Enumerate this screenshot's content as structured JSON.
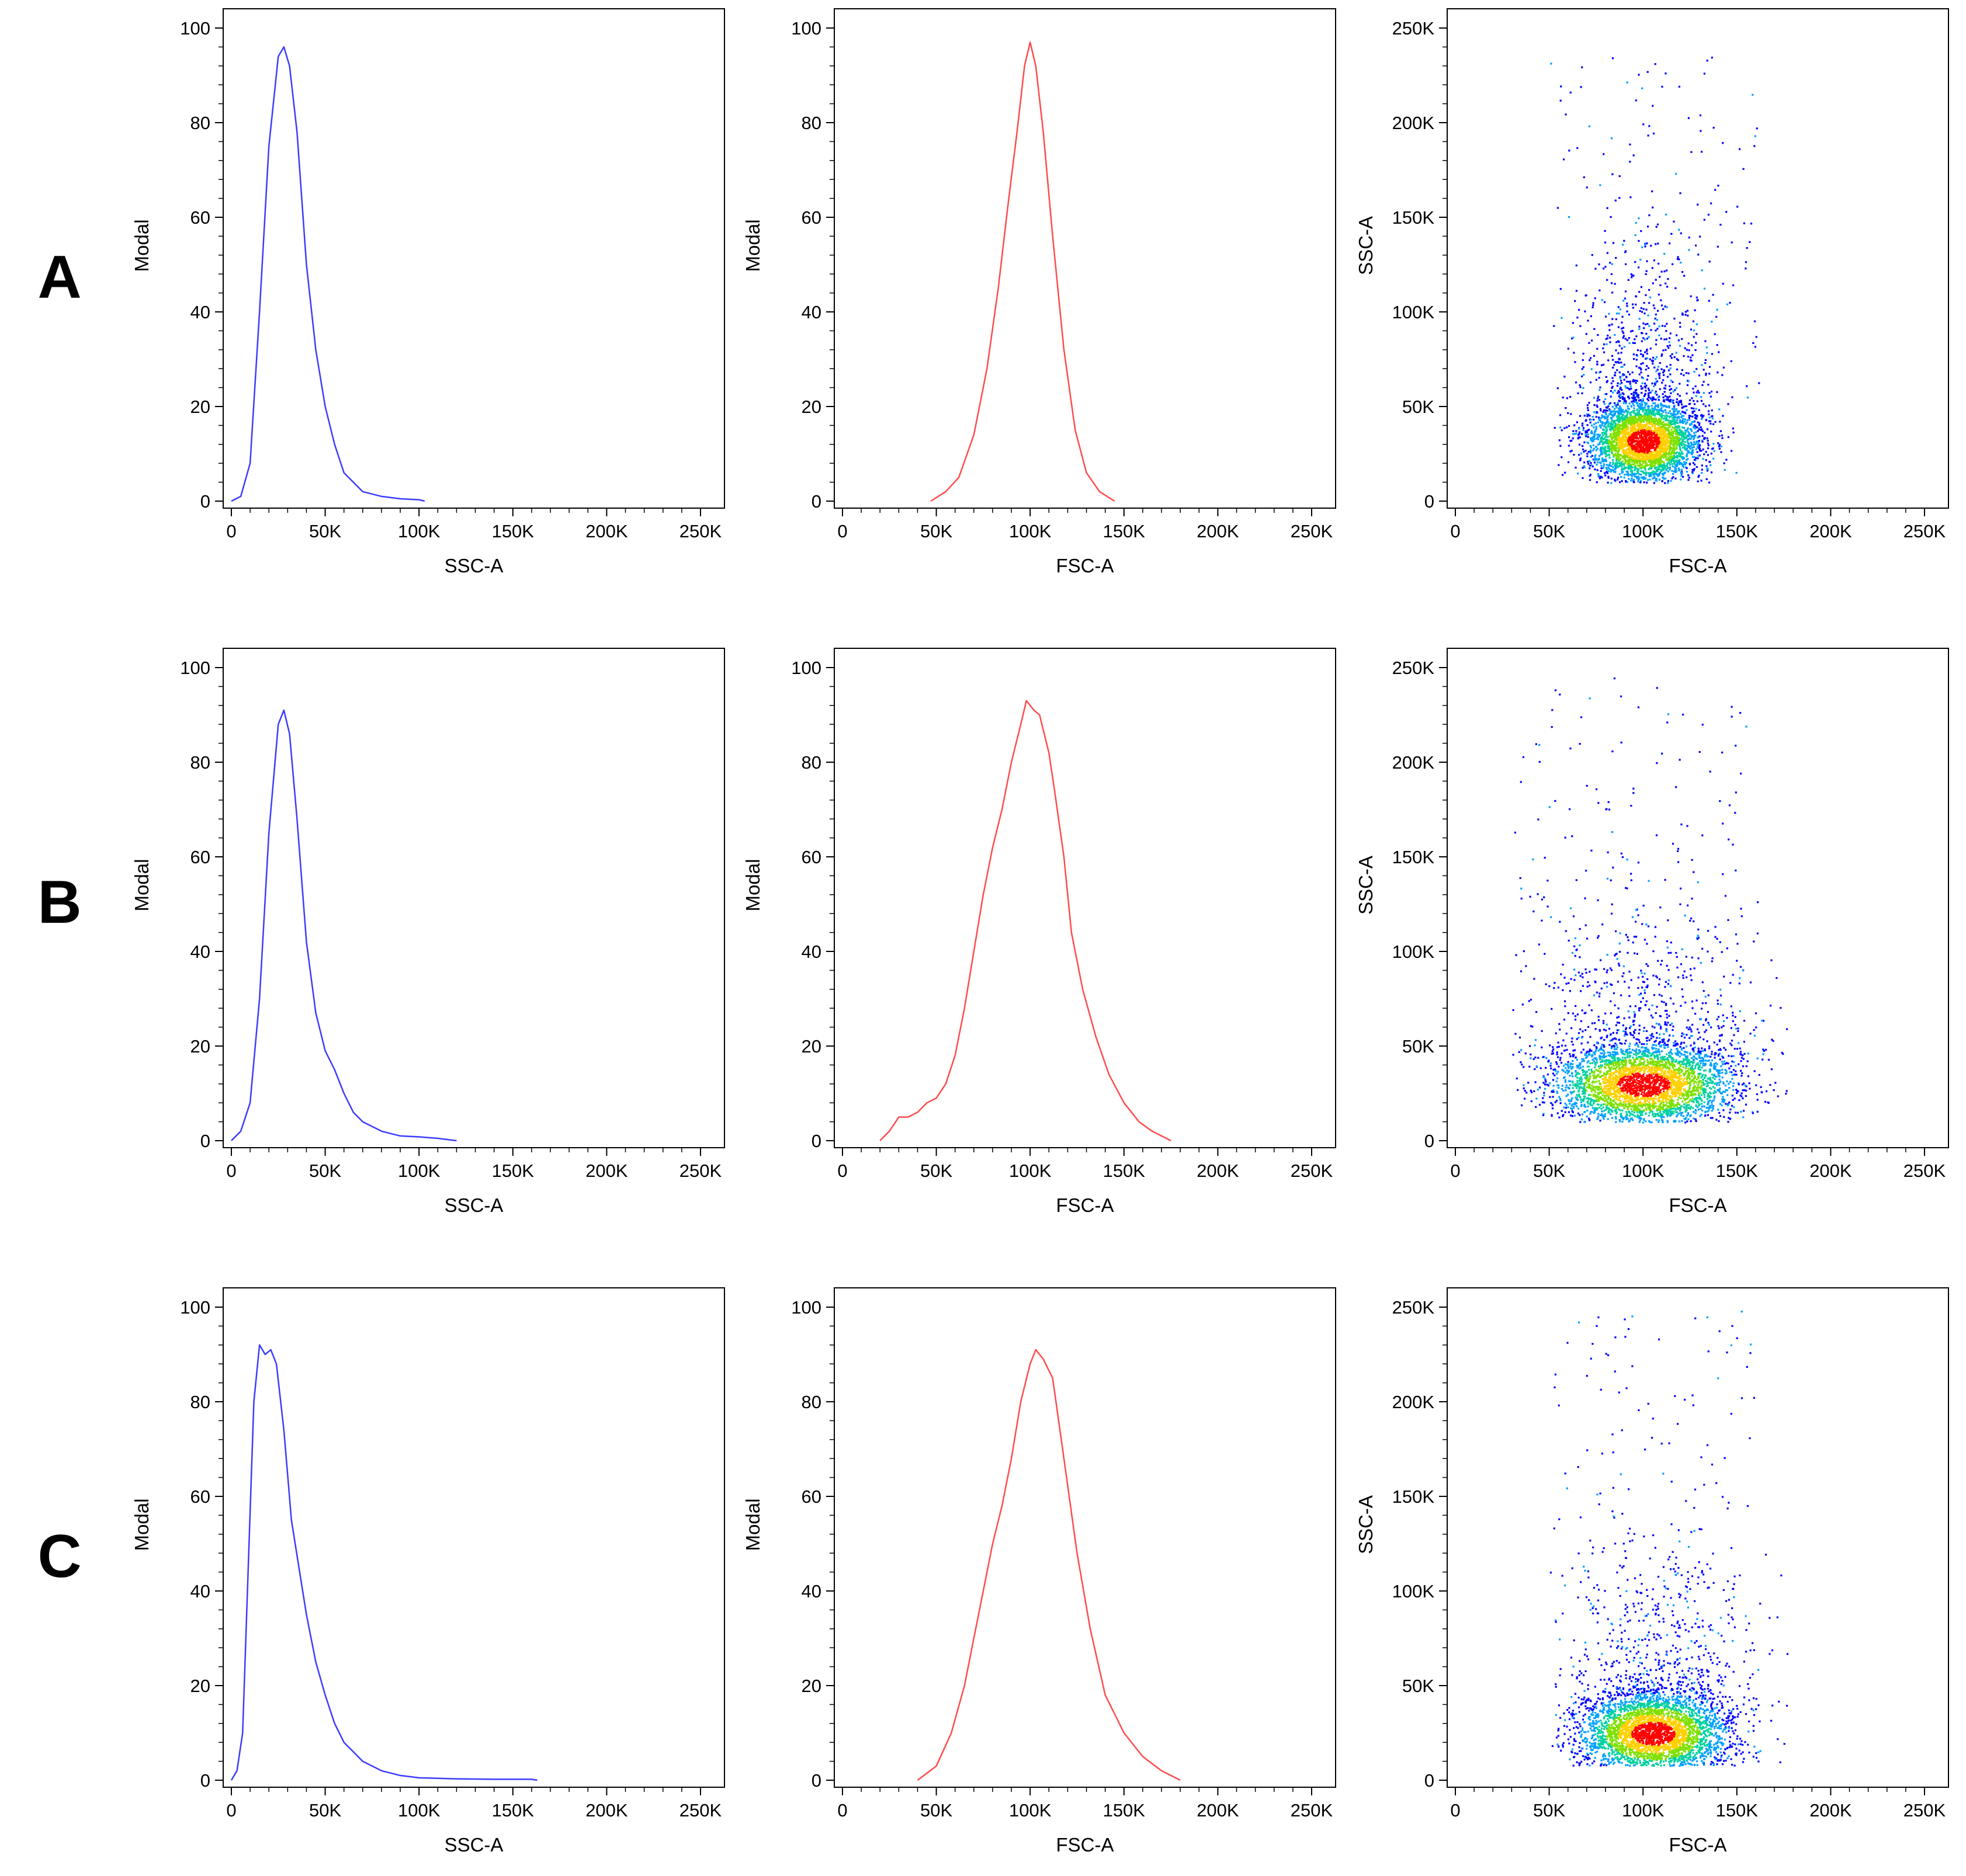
{
  "figure": {
    "rows": [
      {
        "label": "A"
      },
      {
        "label": "B"
      },
      {
        "label": "C"
      }
    ]
  },
  "colors": {
    "ssc_hist": "#3b3bff",
    "fsc_hist": "#ff4b4b",
    "axis": "#000000",
    "density": [
      "#0000ff",
      "#00a0ff",
      "#00d0a0",
      "#7fe000",
      "#ffd000",
      "#ff0000"
    ]
  },
  "chart_data": [
    {
      "id": "A-ssc",
      "row": "A",
      "type": "area",
      "style": "histogram-line",
      "color": "#3b3bff",
      "xlabel": "SSC-A",
      "ylabel": "Modal",
      "xlim": [
        0,
        262144
      ],
      "ylim": [
        0,
        100
      ],
      "x_ticks": [
        0,
        50000,
        100000,
        150000,
        200000,
        250000
      ],
      "x_tick_labels": [
        "0",
        "50K",
        "100K",
        "150K",
        "200K",
        "250K"
      ],
      "y_ticks": [
        0,
        20,
        40,
        60,
        80,
        100
      ],
      "y_tick_labels": [
        "0",
        "20",
        "40",
        "60",
        "80",
        "100"
      ],
      "x": [
        0,
        5000,
        10000,
        15000,
        20000,
        25000,
        28000,
        31000,
        35000,
        40000,
        45000,
        50000,
        55000,
        60000,
        65000,
        70000,
        80000,
        90000,
        100000,
        103000
      ],
      "y": [
        0,
        1,
        8,
        40,
        75,
        94,
        96,
        92,
        78,
        50,
        32,
        20,
        12,
        6,
        4,
        2,
        1,
        0.5,
        0.3,
        0
      ]
    },
    {
      "id": "A-fsc",
      "row": "A",
      "type": "area",
      "style": "histogram-line",
      "color": "#ff4b4b",
      "xlabel": "FSC-A",
      "ylabel": "Modal",
      "xlim": [
        0,
        262144
      ],
      "ylim": [
        0,
        100
      ],
      "x_ticks": [
        0,
        50000,
        100000,
        150000,
        200000,
        250000
      ],
      "x_tick_labels": [
        "0",
        "50K",
        "100K",
        "150K",
        "200K",
        "250K"
      ],
      "y_ticks": [
        0,
        20,
        40,
        60,
        80,
        100
      ],
      "y_tick_labels": [
        "0",
        "20",
        "40",
        "60",
        "80",
        "100"
      ],
      "x": [
        47000,
        55000,
        62000,
        70000,
        77000,
        83000,
        88000,
        93000,
        97000,
        100000,
        103000,
        107000,
        112000,
        118000,
        124000,
        130000,
        137000,
        145000
      ],
      "y": [
        0,
        2,
        5,
        14,
        28,
        45,
        62,
        78,
        92,
        97,
        92,
        78,
        56,
        32,
        15,
        6,
        2,
        0
      ]
    },
    {
      "id": "A-scatter",
      "row": "A",
      "type": "scatter",
      "style": "density-dot-plot",
      "xlabel": "FSC-A",
      "ylabel": "SSC-A",
      "xlim": [
        0,
        262144
      ],
      "ylim": [
        0,
        262144
      ],
      "x_ticks": [
        0,
        50000,
        100000,
        150000,
        200000,
        250000
      ],
      "x_tick_labels": [
        "0",
        "50K",
        "100K",
        "150K",
        "200K",
        "250K"
      ],
      "y_ticks": [
        0,
        50000,
        100000,
        150000,
        200000,
        250000
      ],
      "y_tick_labels": [
        "0",
        "50K",
        "100K",
        "150K",
        "200K",
        "250K"
      ],
      "core": {
        "x_mean": 100000,
        "x_sd": 15000,
        "y_mean": 32000,
        "y_sd": 11000
      },
      "x_range": [
        50000,
        180000
      ],
      "y_range": [
        10000,
        235000
      ]
    },
    {
      "id": "B-ssc",
      "row": "B",
      "type": "area",
      "style": "histogram-line",
      "color": "#3b3bff",
      "xlabel": "SSC-A",
      "ylabel": "Modal",
      "xlim": [
        0,
        262144
      ],
      "ylim": [
        0,
        100
      ],
      "x_ticks": [
        0,
        50000,
        100000,
        150000,
        200000,
        250000
      ],
      "x_tick_labels": [
        "0",
        "50K",
        "100K",
        "150K",
        "200K",
        "250K"
      ],
      "y_ticks": [
        0,
        20,
        40,
        60,
        80,
        100
      ],
      "y_tick_labels": [
        "0",
        "20",
        "40",
        "60",
        "80",
        "100"
      ],
      "x": [
        0,
        5000,
        10000,
        15000,
        20000,
        25000,
        28000,
        31000,
        35000,
        40000,
        45000,
        50000,
        55000,
        60000,
        65000,
        70000,
        80000,
        90000,
        100000,
        110000,
        120000
      ],
      "y": [
        0,
        2,
        8,
        30,
        65,
        88,
        91,
        86,
        68,
        42,
        27,
        19,
        15,
        10,
        6,
        4,
        2,
        1,
        0.8,
        0.5,
        0
      ]
    },
    {
      "id": "B-fsc",
      "row": "B",
      "type": "area",
      "style": "histogram-line",
      "color": "#ff4b4b",
      "xlabel": "FSC-A",
      "ylabel": "Modal",
      "xlim": [
        0,
        262144
      ],
      "ylim": [
        0,
        100
      ],
      "x_ticks": [
        0,
        50000,
        100000,
        150000,
        200000,
        250000
      ],
      "x_tick_labels": [
        "0",
        "50K",
        "100K",
        "150K",
        "200K",
        "250K"
      ],
      "y_ticks": [
        0,
        20,
        40,
        60,
        80,
        100
      ],
      "y_tick_labels": [
        "0",
        "20",
        "40",
        "60",
        "80",
        "100"
      ],
      "x": [
        20000,
        25000,
        30000,
        35000,
        40000,
        45000,
        50000,
        55000,
        60000,
        65000,
        70000,
        75000,
        80000,
        85000,
        90000,
        95000,
        98000,
        102000,
        105000,
        110000,
        113000,
        118000,
        122000,
        128000,
        135000,
        142000,
        150000,
        158000,
        165000,
        175000
      ],
      "y": [
        0,
        2,
        5,
        5,
        6,
        8,
        9,
        12,
        18,
        28,
        40,
        52,
        62,
        70,
        80,
        88,
        93,
        91,
        90,
        82,
        74,
        60,
        44,
        32,
        22,
        14,
        8,
        4,
        2,
        0
      ]
    },
    {
      "id": "B-scatter",
      "row": "B",
      "type": "scatter",
      "style": "density-dot-plot",
      "xlabel": "FSC-A",
      "ylabel": "SSC-A",
      "xlim": [
        0,
        262144
      ],
      "ylim": [
        0,
        262144
      ],
      "x_ticks": [
        0,
        50000,
        100000,
        150000,
        200000,
        250000
      ],
      "x_tick_labels": [
        "0",
        "50K",
        "100K",
        "150K",
        "200K",
        "250K"
      ],
      "y_ticks": [
        0,
        50000,
        100000,
        150000,
        200000,
        250000
      ],
      "y_tick_labels": [
        "0",
        "50K",
        "100K",
        "150K",
        "200K",
        "250K"
      ],
      "core": {
        "x_mean": 100000,
        "x_sd": 25000,
        "y_mean": 30000,
        "y_sd": 11000
      },
      "x_range": [
        30000,
        178000
      ],
      "y_range": [
        10000,
        245000
      ]
    },
    {
      "id": "C-ssc",
      "row": "C",
      "type": "area",
      "style": "histogram-line",
      "color": "#3b3bff",
      "xlabel": "SSC-A",
      "ylabel": "Modal",
      "xlim": [
        0,
        262144
      ],
      "ylim": [
        0,
        100
      ],
      "x_ticks": [
        0,
        50000,
        100000,
        150000,
        200000,
        250000
      ],
      "x_tick_labels": [
        "0",
        "50K",
        "100K",
        "150K",
        "200K",
        "250K"
      ],
      "y_ticks": [
        0,
        20,
        40,
        60,
        80,
        100
      ],
      "y_tick_labels": [
        "0",
        "20",
        "40",
        "60",
        "80",
        "100"
      ],
      "x": [
        0,
        3000,
        6000,
        9000,
        12000,
        15000,
        18000,
        21000,
        24000,
        28000,
        32000,
        36000,
        40000,
        45000,
        50000,
        55000,
        60000,
        65000,
        70000,
        80000,
        90000,
        100000,
        120000,
        140000,
        160000,
        163000
      ],
      "y": [
        0,
        2,
        10,
        45,
        80,
        92,
        90,
        91,
        88,
        74,
        55,
        45,
        35,
        25,
        18,
        12,
        8,
        6,
        4,
        2,
        1,
        0.5,
        0.3,
        0.2,
        0.2,
        0
      ]
    },
    {
      "id": "C-fsc",
      "row": "C",
      "type": "area",
      "style": "histogram-line",
      "color": "#ff4b4b",
      "xlabel": "FSC-A",
      "ylabel": "Modal",
      "xlim": [
        0,
        262144
      ],
      "ylim": [
        0,
        100
      ],
      "x_ticks": [
        0,
        50000,
        100000,
        150000,
        200000,
        250000
      ],
      "x_tick_labels": [
        "0",
        "50K",
        "100K",
        "150K",
        "200K",
        "250K"
      ],
      "y_ticks": [
        0,
        20,
        40,
        60,
        80,
        100
      ],
      "y_tick_labels": [
        "0",
        "20",
        "40",
        "60",
        "80",
        "100"
      ],
      "x": [
        40000,
        50000,
        58000,
        65000,
        70000,
        75000,
        80000,
        85000,
        90000,
        95000,
        100000,
        103000,
        107000,
        112000,
        118000,
        125000,
        132000,
        140000,
        150000,
        160000,
        170000,
        180000
      ],
      "y": [
        0,
        3,
        10,
        20,
        30,
        40,
        50,
        58,
        68,
        80,
        88,
        91,
        89,
        85,
        68,
        48,
        32,
        18,
        10,
        5,
        2,
        0
      ]
    },
    {
      "id": "C-scatter",
      "row": "C",
      "type": "scatter",
      "style": "density-dot-plot",
      "xlabel": "FSC-A",
      "ylabel": "SSC-A",
      "xlim": [
        0,
        262144
      ],
      "ylim": [
        0,
        262144
      ],
      "x_ticks": [
        0,
        50000,
        100000,
        150000,
        200000,
        250000
      ],
      "x_tick_labels": [
        "0",
        "50K",
        "100K",
        "150K",
        "200K",
        "250K"
      ],
      "y_ticks": [
        0,
        50000,
        100000,
        150000,
        200000,
        250000
      ],
      "y_tick_labels": [
        "0",
        "50K",
        "100K",
        "150K",
        "200K",
        "250K"
      ],
      "core": {
        "x_mean": 105000,
        "x_sd": 20000,
        "y_mean": 25000,
        "y_sd": 11000
      },
      "x_range": [
        50000,
        178000
      ],
      "y_range": [
        8000,
        250000
      ]
    }
  ]
}
